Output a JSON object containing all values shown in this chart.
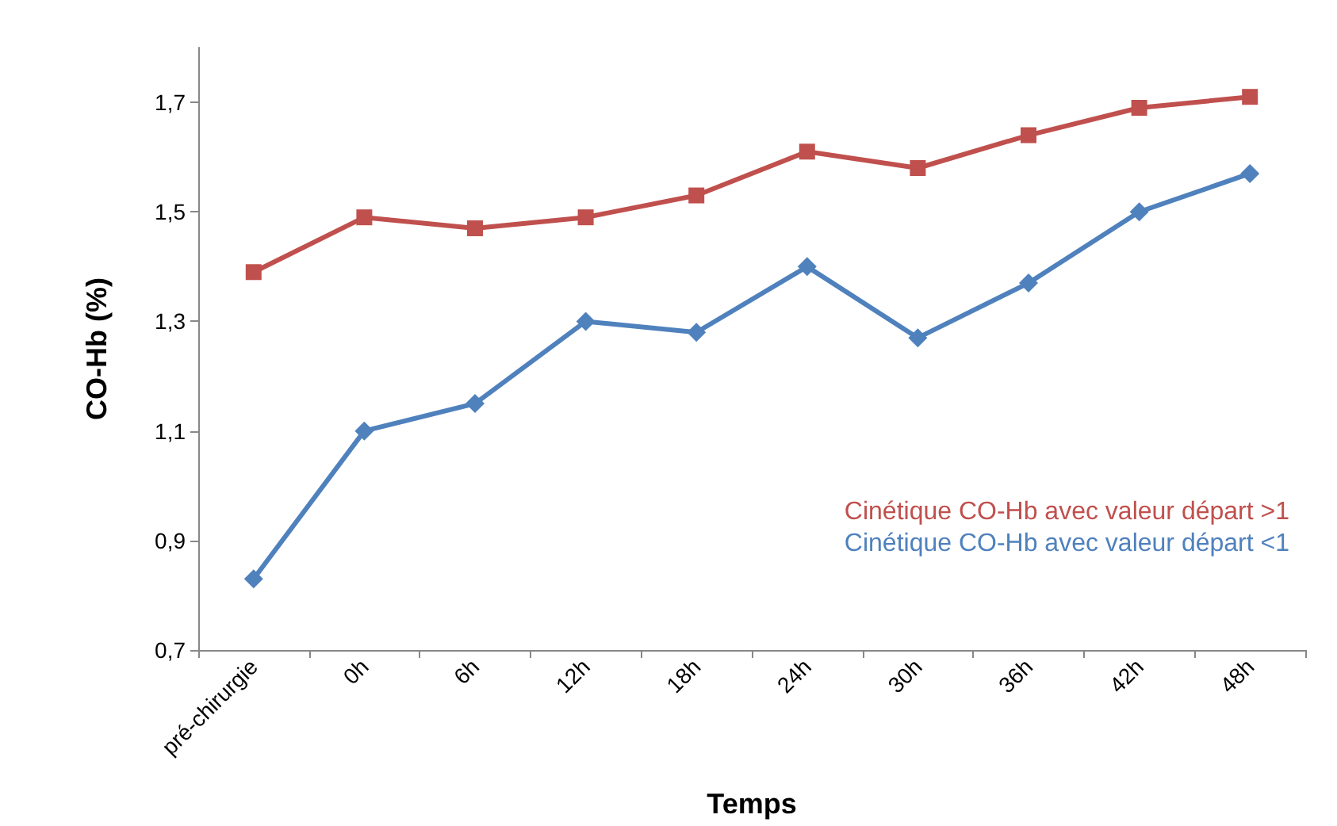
{
  "chart_data": {
    "type": "line",
    "xlabel": "Temps",
    "ylabel": "CO-Hb (%)",
    "categories": [
      "pré-chirurgie",
      "0h",
      "6h",
      "12h",
      "18h",
      "24h",
      "30h",
      "36h",
      "42h",
      "48h"
    ],
    "series": [
      {
        "name": "Cinétique CO-Hb avec valeur départ >1",
        "color": "#c0504d",
        "marker": "square",
        "values": [
          1.39,
          1.49,
          1.47,
          1.49,
          1.53,
          1.61,
          1.58,
          1.64,
          1.69,
          1.71
        ]
      },
      {
        "name": "Cinétique CO-Hb avec valeur départ <1",
        "color": "#4f81bd",
        "marker": "diamond",
        "values": [
          0.83,
          1.1,
          1.15,
          1.3,
          1.28,
          1.4,
          1.27,
          1.37,
          1.5,
          1.57
        ]
      }
    ],
    "ylim": [
      0.7,
      1.8
    ],
    "yticks": [
      {
        "value": 0.7,
        "label": "0,7"
      },
      {
        "value": 0.9,
        "label": "0,9"
      },
      {
        "value": 1.1,
        "label": "1,1"
      },
      {
        "value": 1.3,
        "label": "1,3"
      },
      {
        "value": 1.5,
        "label": "1,5"
      },
      {
        "value": 1.7,
        "label": "1,7"
      }
    ],
    "grid": false,
    "legend": "right"
  }
}
